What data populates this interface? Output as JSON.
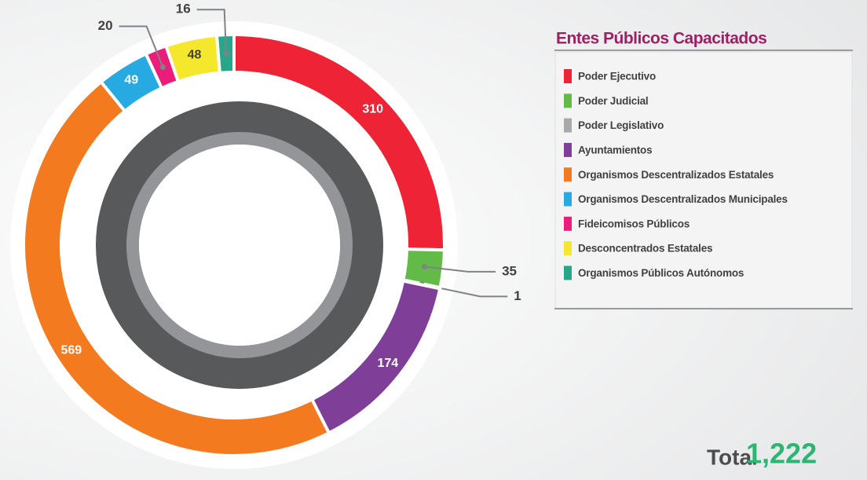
{
  "chart_data": {
    "type": "pie",
    "donut": true,
    "start_angle": 0,
    "direction": "clockwise",
    "title": "Entes Públicos Capacitados",
    "categories": [
      "Poder Ejecutivo",
      "Poder Judicial",
      "Poder Legislativo",
      "Ayuntamientos",
      "Organismos Descentralizados Estatales",
      "Organismos Descentralizados Municipales",
      "Fideicomisos Públicos",
      "Desconcentrados Estatales",
      "Organismos Públicos Autónomos"
    ],
    "values": [
      310,
      35,
      1,
      174,
      569,
      49,
      20,
      48,
      16
    ],
    "colors": [
      "#ee2336",
      "#62bb46",
      "#a7a9ac",
      "#7f3f98",
      "#f47a20",
      "#27aae1",
      "#ec1c7b",
      "#f5e82c",
      "#26a78a"
    ],
    "total": {
      "label": "Total",
      "value": 1222,
      "value_label": "1,222"
    }
  }
}
